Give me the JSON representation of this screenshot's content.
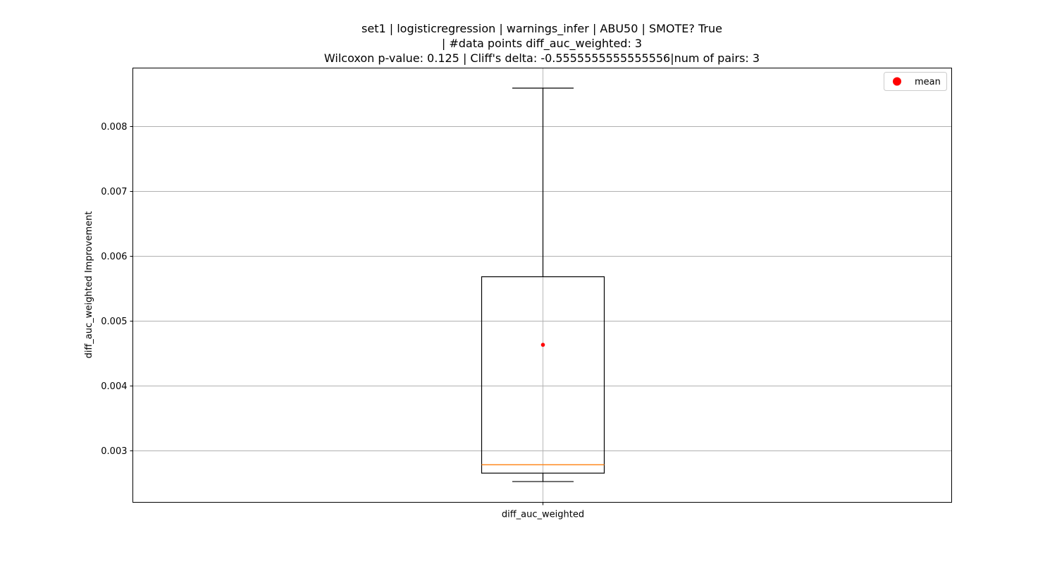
{
  "chart_data": {
    "type": "box",
    "title_lines": [
      "set1 | logisticregression | warnings_infer | ABU50 | SMOTE? True",
      "| #data points diff_auc_weighted: 3",
      "Wilcoxon p-value: 0.125 | Cliff's delta: -0.5555555555555556|num of pairs: 3"
    ],
    "xlabel": "",
    "ylabel": "diff_auc_weighted Improvement",
    "categories": [
      "diff_auc_weighted"
    ],
    "ylim": [
      0.0022,
      0.0089
    ],
    "yticks": [
      0.003,
      0.004,
      0.005,
      0.006,
      0.007,
      0.008
    ],
    "ytick_labels": [
      "0.003",
      "0.004",
      "0.005",
      "0.006",
      "0.007",
      "0.008"
    ],
    "grid": true,
    "boxes": [
      {
        "category": "diff_auc_weighted",
        "whisker_low": 0.00252,
        "q1": 0.00265,
        "median": 0.00278,
        "q3": 0.00568,
        "whisker_high": 0.00859,
        "mean": 0.00463
      }
    ],
    "legend": {
      "position": "top-right",
      "entries": [
        {
          "label": "mean",
          "marker": "dot"
        }
      ]
    },
    "colors": {
      "box": "#000000",
      "median": "#ff7f0e",
      "mean": "#ff0000",
      "grid": "#b0b0b0"
    }
  }
}
